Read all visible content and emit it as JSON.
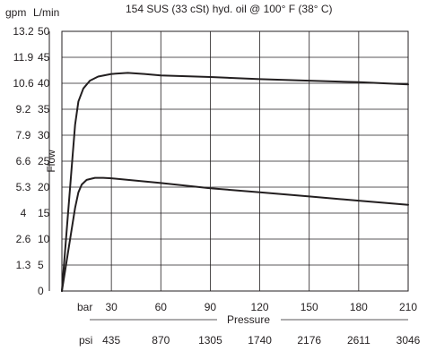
{
  "chart_data": {
    "type": "line",
    "title": "154 SUS (33 cSt) hyd. oil @ 100° F (38° C)",
    "ylabel": "Flow",
    "xlabel": "Pressure",
    "y_unit_left": "gpm",
    "y_unit_right": "L/min",
    "x_unit_top": "bar",
    "x_unit_bottom": "psi",
    "xlim": [
      0,
      210
    ],
    "ylim": [
      0,
      50
    ],
    "x_ticks": [
      30,
      60,
      90,
      120,
      150,
      180,
      210
    ],
    "x_ticks_psi": [
      "435",
      "870",
      "1305",
      "1740",
      "2176",
      "2611",
      "3046"
    ],
    "y_ticks": [
      0,
      5,
      10,
      15,
      20,
      25,
      30,
      35,
      40,
      45,
      50
    ],
    "y_ticks_gpm": [
      "1.3",
      "2.6",
      "4",
      "5.3",
      "6.6",
      "7.9",
      "9.2",
      "10.6",
      "11.9",
      "13.2"
    ],
    "grid": true,
    "series": [
      {
        "x": [
          0,
          3,
          6,
          8,
          10,
          13,
          17,
          22,
          30,
          40,
          50,
          60,
          90,
          120,
          150,
          180,
          210
        ],
        "values": [
          0,
          12,
          24,
          32,
          36.5,
          39,
          40.5,
          41.3,
          41.8,
          42,
          41.8,
          41.5,
          41.2,
          40.8,
          40.5,
          40.2,
          39.8
        ]
      },
      {
        "x": [
          0,
          3,
          6,
          8,
          10,
          12,
          15,
          20,
          25,
          30,
          60,
          90,
          120,
          150,
          180,
          210
        ],
        "values": [
          0,
          6,
          12,
          16,
          19,
          20.5,
          21.4,
          21.8,
          21.8,
          21.7,
          20.8,
          19.8,
          19,
          18.2,
          17.4,
          16.6
        ]
      }
    ]
  }
}
